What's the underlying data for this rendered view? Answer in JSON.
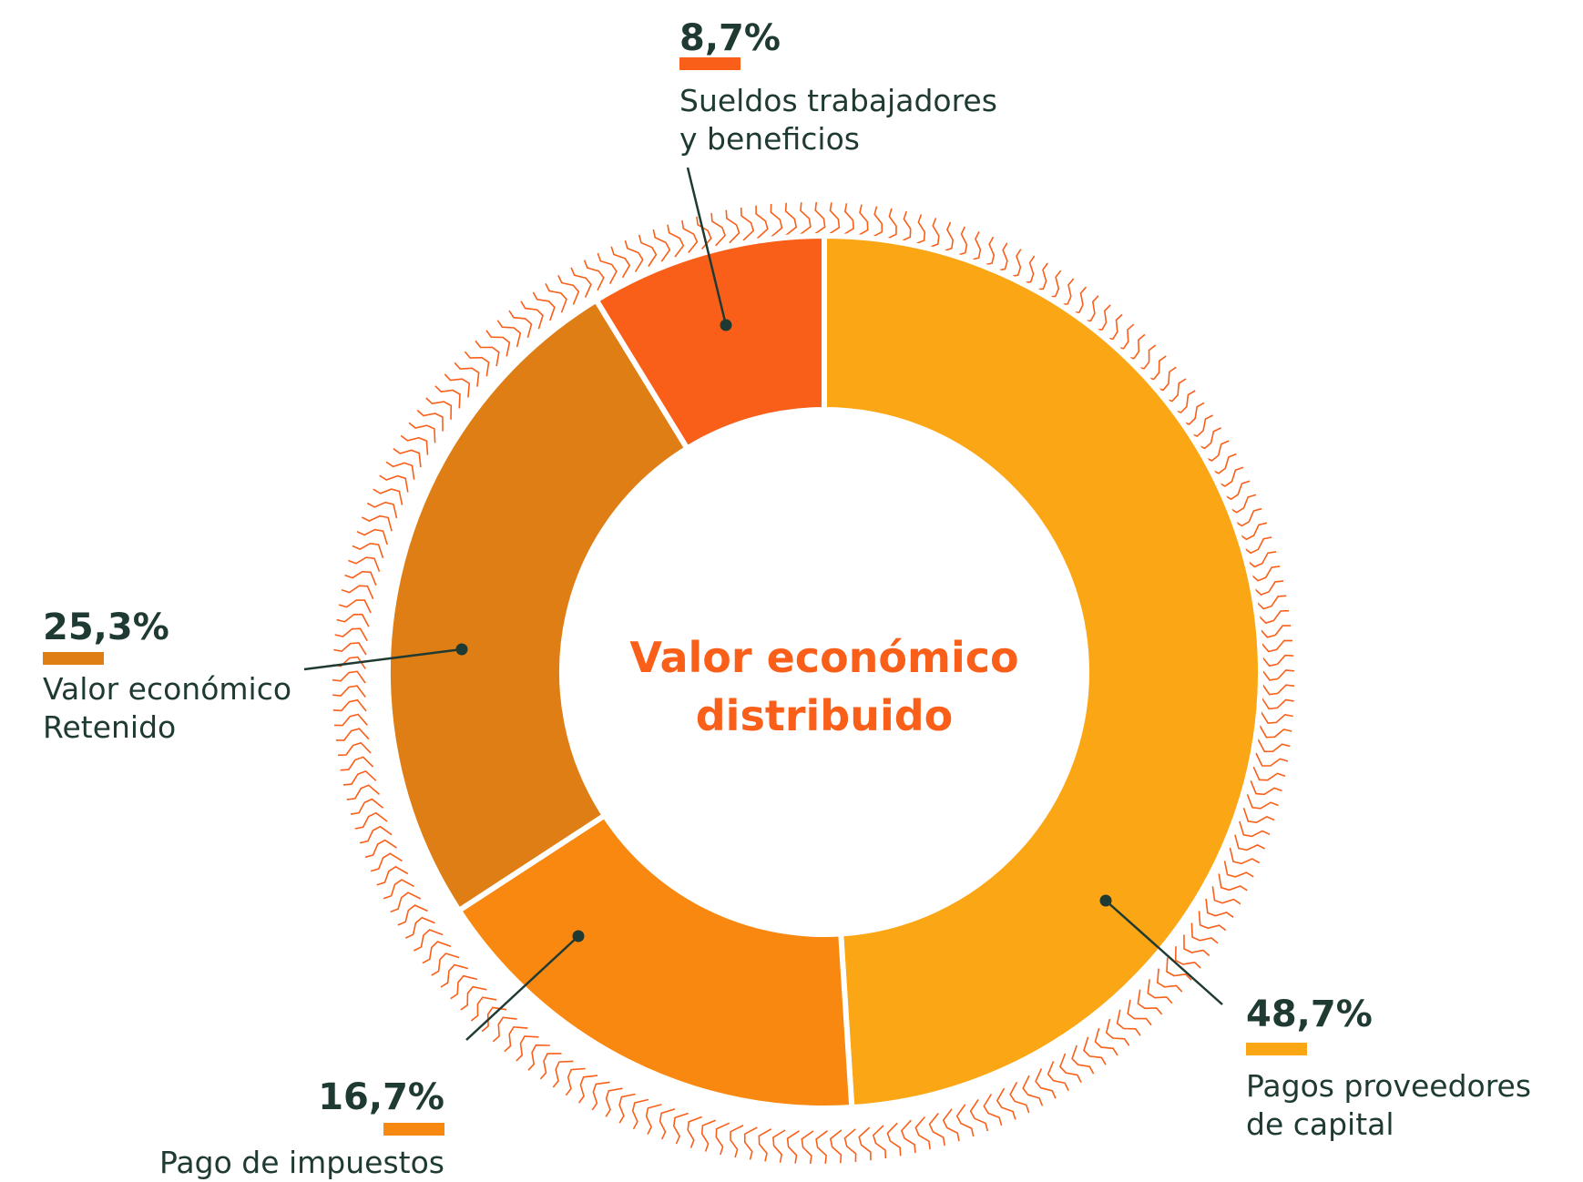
{
  "chart_data": {
    "type": "donut",
    "title": "Valor económico distribuido",
    "categories": [
      "Pagos proveedores\nde capital",
      "Pago de impuestos",
      "Valor económico\nRetenido",
      "Sueldos trabajadores\ny beneficios"
    ],
    "values": [
      48.7,
      16.7,
      25.3,
      8.7
    ],
    "value_labels": [
      "48,7%",
      "16,7%",
      "25,3%",
      "8,7%"
    ],
    "colors": [
      "#FBA614",
      "#F8880F",
      "#E07E16",
      "#F95F19"
    ]
  }
}
